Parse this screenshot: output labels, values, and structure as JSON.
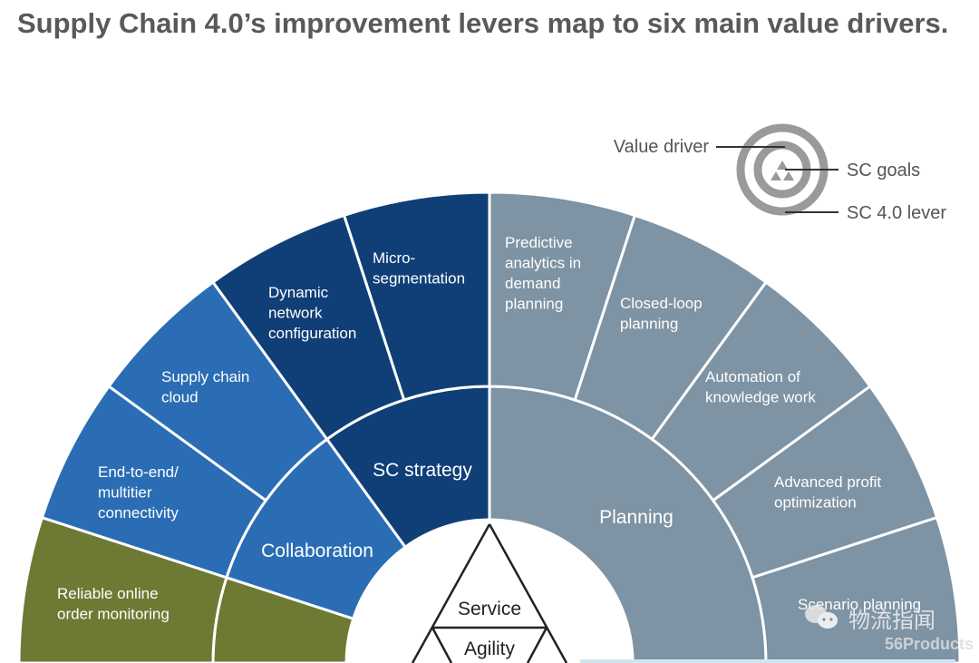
{
  "title": "Supply Chain 4.0’s improvement levers map to six main value drivers.",
  "colors": {
    "olive": "#6d7a33",
    "blue": "#2b6db4",
    "navy": "#103f77",
    "slate": "#7e93a3",
    "legend_gray": "#999999",
    "title": "#58595b"
  },
  "legend": {
    "value_driver": "Value driver",
    "sc_goals": "SC goals",
    "sc_lever": "SC 4.0 lever"
  },
  "drivers": [
    {
      "label": "",
      "color": "olive"
    },
    {
      "label": "Collaboration",
      "color": "blue"
    },
    {
      "label": "SC strategy",
      "color": "navy"
    },
    {
      "label": "Planning",
      "color": "slate"
    }
  ],
  "levers": [
    {
      "lines": [
        "Reliable online",
        "order monitoring"
      ],
      "color": "olive"
    },
    {
      "lines": [
        "End-to-end/",
        "multitier",
        "connectivity"
      ],
      "color": "blue"
    },
    {
      "lines": [
        "Supply chain",
        "cloud"
      ],
      "color": "blue"
    },
    {
      "lines": [
        "Dynamic",
        "network",
        "configuration"
      ],
      "color": "navy"
    },
    {
      "lines": [
        "Micro-",
        "segmentation"
      ],
      "color": "navy"
    },
    {
      "lines": [
        "Predictive",
        "analytics in",
        "demand",
        "planning"
      ],
      "color": "slate"
    },
    {
      "lines": [
        "Closed-loop",
        "planning"
      ],
      "color": "slate"
    },
    {
      "lines": [
        "Automation of",
        "knowledge work"
      ],
      "color": "slate"
    },
    {
      "lines": [
        "Advanced profit",
        "optimization"
      ],
      "color": "slate"
    },
    {
      "lines": [
        "Scenario planning"
      ],
      "color": "slate"
    }
  ],
  "goals": [
    "Service",
    "Agility"
  ],
  "watermark": {
    "text": "物流指闻",
    "sub": "56Products",
    "icon": "wechat-icon"
  }
}
